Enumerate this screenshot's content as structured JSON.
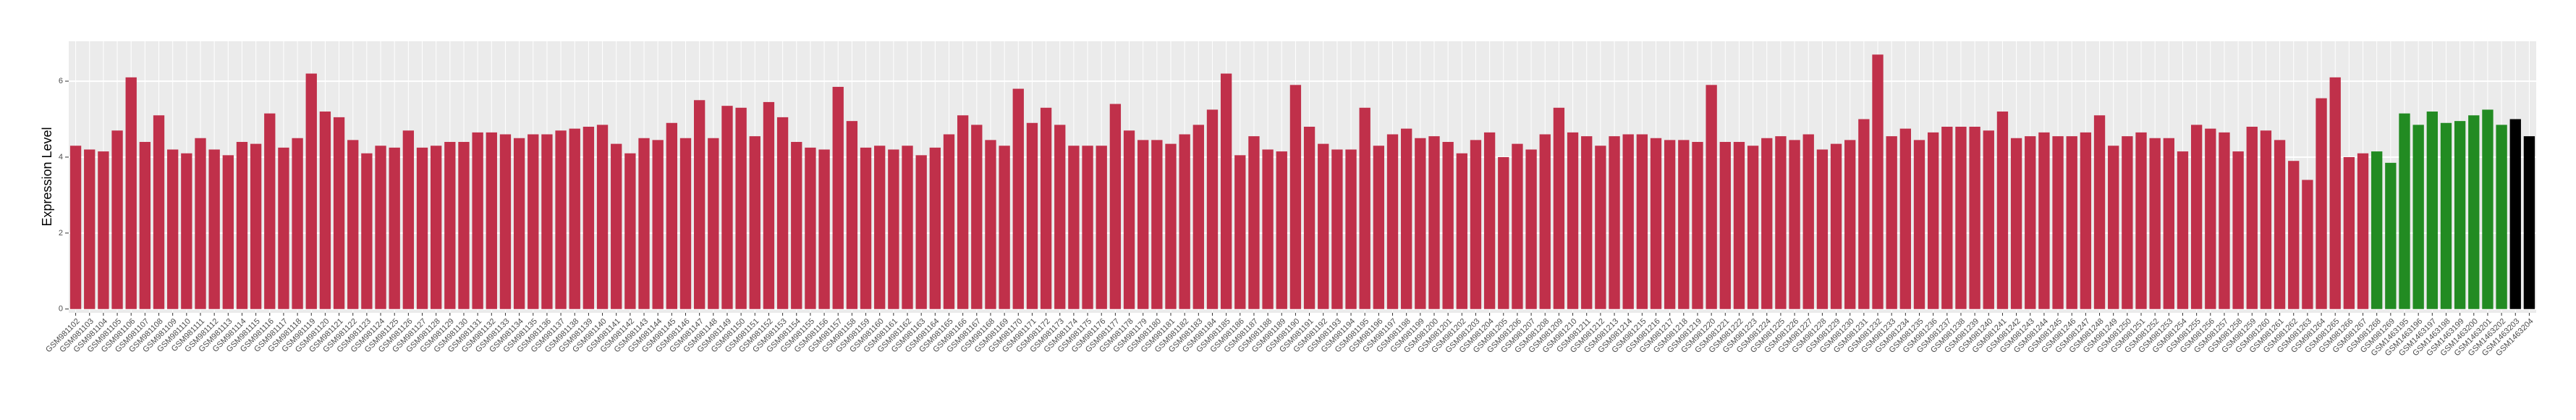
{
  "chart_data": {
    "type": "bar",
    "y_label": "Expression Level",
    "categories": [
      "GSM981102",
      "GSM981103",
      "GSM981104",
      "GSM981105",
      "GSM981106",
      "GSM981107",
      "GSM981108",
      "GSM981109",
      "GSM981110",
      "GSM981111",
      "GSM981112",
      "GSM981113",
      "GSM981114",
      "GSM981115",
      "GSM981116",
      "GSM981117",
      "GSM981118",
      "GSM981119",
      "GSM981120",
      "GSM981121",
      "GSM981122",
      "GSM981123",
      "GSM981124",
      "GSM981125",
      "GSM981126",
      "GSM981127",
      "GSM981128",
      "GSM981129",
      "GSM981130",
      "GSM981131",
      "GSM981132",
      "GSM981133",
      "GSM981134",
      "GSM981135",
      "GSM981136",
      "GSM981137",
      "GSM981138",
      "GSM981139",
      "GSM981140",
      "GSM981141",
      "GSM981142",
      "GSM981143",
      "GSM981144",
      "GSM981145",
      "GSM981146",
      "GSM981147",
      "GSM981148",
      "GSM981149",
      "GSM981150",
      "GSM981151",
      "GSM981152",
      "GSM981153",
      "GSM981154",
      "GSM981155",
      "GSM981156",
      "GSM981157",
      "GSM981158",
      "GSM981159",
      "GSM981160",
      "GSM981161",
      "GSM981162",
      "GSM981163",
      "GSM981164",
      "GSM981165",
      "GSM981166",
      "GSM981167",
      "GSM981168",
      "GSM981169",
      "GSM981170",
      "GSM981171",
      "GSM981172",
      "GSM981173",
      "GSM981174",
      "GSM981175",
      "GSM981176",
      "GSM981177",
      "GSM981178",
      "GSM981179",
      "GSM981180",
      "GSM981181",
      "GSM981182",
      "GSM981183",
      "GSM981184",
      "GSM981185",
      "GSM981186",
      "GSM981187",
      "GSM981188",
      "GSM981189",
      "GSM981190",
      "GSM981191",
      "GSM981192",
      "GSM981193",
      "GSM981194",
      "GSM981195",
      "GSM981196",
      "GSM981197",
      "GSM981198",
      "GSM981199",
      "GSM981200",
      "GSM981201",
      "GSM981202",
      "GSM981203",
      "GSM981204",
      "GSM981205",
      "GSM981206",
      "GSM981207",
      "GSM981208",
      "GSM981209",
      "GSM981210",
      "GSM981211",
      "GSM981212",
      "GSM981213",
      "GSM981214",
      "GSM981215",
      "GSM981216",
      "GSM981217",
      "GSM981218",
      "GSM981219",
      "GSM981220",
      "GSM981221",
      "GSM981222",
      "GSM981223",
      "GSM981224",
      "GSM981225",
      "GSM981226",
      "GSM981227",
      "GSM981228",
      "GSM981229",
      "GSM981230",
      "GSM981231",
      "GSM981232",
      "GSM981233",
      "GSM981234",
      "GSM981235",
      "GSM981236",
      "GSM981237",
      "GSM981238",
      "GSM981239",
      "GSM981240",
      "GSM981241",
      "GSM981242",
      "GSM981243",
      "GSM981244",
      "GSM981245",
      "GSM981246",
      "GSM981247",
      "GSM981248",
      "GSM981249",
      "GSM981250",
      "GSM981251",
      "GSM981252",
      "GSM981253",
      "GSM981254",
      "GSM981255",
      "GSM981256",
      "GSM981257",
      "GSM981258",
      "GSM981259",
      "GSM981260",
      "GSM981261",
      "GSM981262",
      "GSM981263",
      "GSM981264",
      "GSM981265",
      "GSM981266",
      "GSM981267",
      "GSM981268",
      "GSM981269",
      "GSM1463195",
      "GSM1463196",
      "GSM1463197",
      "GSM1463198",
      "GSM1463199",
      "GSM1463200",
      "GSM1463201",
      "GSM1463202",
      "GSM1463203",
      "GSM1463204"
    ],
    "values": [
      4.3,
      4.2,
      4.15,
      4.7,
      6.1,
      4.4,
      5.1,
      4.2,
      4.1,
      4.5,
      4.2,
      4.05,
      4.4,
      4.35,
      5.15,
      4.25,
      4.5,
      6.2,
      5.2,
      5.05,
      4.45,
      4.1,
      4.3,
      4.25,
      4.7,
      4.25,
      4.3,
      4.4,
      4.4,
      4.65,
      4.65,
      4.6,
      4.5,
      4.6,
      4.6,
      4.7,
      4.75,
      4.8,
      4.85,
      4.35,
      4.1,
      4.5,
      4.45,
      4.9,
      4.5,
      5.5,
      4.5,
      5.35,
      5.3,
      4.55,
      5.45,
      5.05,
      4.4,
      4.25,
      4.2,
      5.85,
      4.95,
      4.25,
      4.3,
      4.2,
      4.3,
      4.05,
      4.25,
      4.6,
      5.1,
      4.85,
      4.45,
      4.3,
      5.8,
      4.9,
      5.3,
      4.85,
      4.3,
      4.3,
      4.3,
      5.4,
      4.7,
      4.45,
      4.45,
      4.35,
      4.6,
      4.85,
      5.25,
      6.2,
      4.05,
      4.55,
      4.2,
      4.15,
      5.9,
      4.8,
      4.35,
      4.2,
      4.2,
      5.3,
      4.3,
      4.6,
      4.75,
      4.5,
      4.55,
      4.4,
      4.1,
      4.45,
      4.65,
      4.0,
      4.35,
      4.2,
      4.6,
      5.3,
      4.65,
      4.55,
      4.3,
      4.55,
      4.6,
      4.6,
      4.5,
      4.45,
      4.45,
      4.4,
      5.9,
      4.4,
      4.4,
      4.3,
      4.5,
      4.55,
      4.45,
      4.6,
      4.2,
      4.35,
      4.45,
      5.0,
      6.7,
      4.55,
      4.75,
      4.45,
      4.65,
      4.8,
      4.8,
      4.8,
      4.7,
      5.2,
      4.5,
      4.55,
      4.65,
      4.55,
      4.55,
      4.65,
      5.1,
      4.3,
      4.55,
      4.65,
      4.5,
      4.5,
      4.15,
      4.85,
      4.75,
      4.65,
      4.15,
      4.8,
      4.7,
      4.45,
      3.9,
      3.4,
      5.55,
      6.1,
      4.0,
      4.1,
      4.15,
      3.85,
      5.15,
      4.85,
      5.2,
      4.9,
      4.95,
      5.1,
      5.25,
      4.85,
      5.0,
      4.55
    ],
    "colors": [
      "#c0304a",
      "#c0304a",
      "#c0304a",
      "#c0304a",
      "#c0304a",
      "#c0304a",
      "#c0304a",
      "#c0304a",
      "#c0304a",
      "#c0304a",
      "#c0304a",
      "#c0304a",
      "#c0304a",
      "#c0304a",
      "#c0304a",
      "#c0304a",
      "#c0304a",
      "#c0304a",
      "#c0304a",
      "#c0304a",
      "#c0304a",
      "#c0304a",
      "#c0304a",
      "#c0304a",
      "#c0304a",
      "#c0304a",
      "#c0304a",
      "#c0304a",
      "#c0304a",
      "#c0304a",
      "#c0304a",
      "#c0304a",
      "#c0304a",
      "#c0304a",
      "#c0304a",
      "#c0304a",
      "#c0304a",
      "#c0304a",
      "#c0304a",
      "#c0304a",
      "#c0304a",
      "#c0304a",
      "#c0304a",
      "#c0304a",
      "#c0304a",
      "#c0304a",
      "#c0304a",
      "#c0304a",
      "#c0304a",
      "#c0304a",
      "#c0304a",
      "#c0304a",
      "#c0304a",
      "#c0304a",
      "#c0304a",
      "#c0304a",
      "#c0304a",
      "#c0304a",
      "#c0304a",
      "#c0304a",
      "#c0304a",
      "#c0304a",
      "#c0304a",
      "#c0304a",
      "#c0304a",
      "#c0304a",
      "#c0304a",
      "#c0304a",
      "#c0304a",
      "#c0304a",
      "#c0304a",
      "#c0304a",
      "#c0304a",
      "#c0304a",
      "#c0304a",
      "#c0304a",
      "#c0304a",
      "#c0304a",
      "#c0304a",
      "#c0304a",
      "#c0304a",
      "#c0304a",
      "#c0304a",
      "#c0304a",
      "#c0304a",
      "#c0304a",
      "#c0304a",
      "#c0304a",
      "#c0304a",
      "#c0304a",
      "#c0304a",
      "#c0304a",
      "#c0304a",
      "#c0304a",
      "#c0304a",
      "#c0304a",
      "#c0304a",
      "#c0304a",
      "#c0304a",
      "#c0304a",
      "#c0304a",
      "#c0304a",
      "#c0304a",
      "#c0304a",
      "#c0304a",
      "#c0304a",
      "#c0304a",
      "#c0304a",
      "#c0304a",
      "#c0304a",
      "#c0304a",
      "#c0304a",
      "#c0304a",
      "#c0304a",
      "#c0304a",
      "#c0304a",
      "#c0304a",
      "#c0304a",
      "#c0304a",
      "#c0304a",
      "#c0304a",
      "#c0304a",
      "#c0304a",
      "#c0304a",
      "#c0304a",
      "#c0304a",
      "#c0304a",
      "#c0304a",
      "#c0304a",
      "#c0304a",
      "#c0304a",
      "#c0304a",
      "#c0304a",
      "#c0304a",
      "#c0304a",
      "#c0304a",
      "#c0304a",
      "#c0304a",
      "#c0304a",
      "#c0304a",
      "#c0304a",
      "#c0304a",
      "#c0304a",
      "#c0304a",
      "#c0304a",
      "#c0304a",
      "#c0304a",
      "#c0304a",
      "#c0304a",
      "#c0304a",
      "#c0304a",
      "#c0304a",
      "#c0304a",
      "#c0304a",
      "#c0304a",
      "#c0304a",
      "#c0304a",
      "#c0304a",
      "#c0304a",
      "#c0304a",
      "#c0304a",
      "#c0304a",
      "#c0304a",
      "#c0304a",
      "#c0304a",
      "#c0304a",
      "#228b22",
      "#228b22",
      "#228b22",
      "#228b22",
      "#228b22",
      "#228b22",
      "#228b22",
      "#228b22",
      "#228b22",
      "#228b22"
    ],
    "ylim": [
      -0.1,
      7.05
    ],
    "yticks": [
      0,
      2,
      4,
      6
    ],
    "grid": true
  }
}
